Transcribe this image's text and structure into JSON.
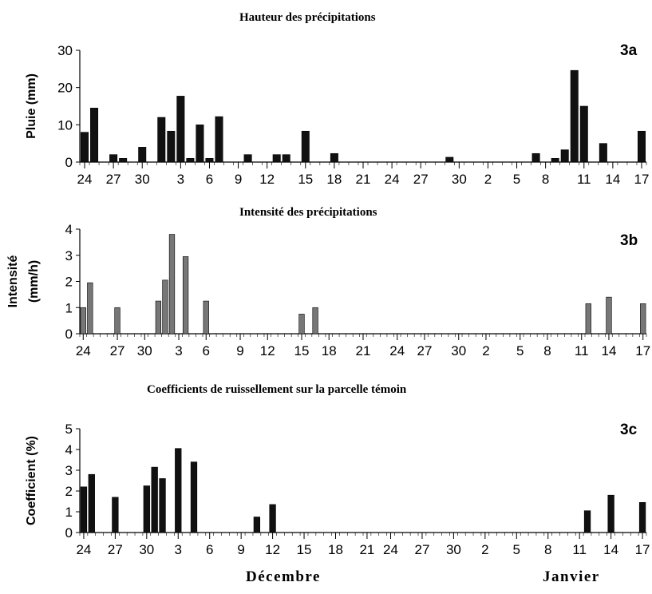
{
  "chart_data": [
    {
      "id": "3a",
      "type": "bar",
      "title": "Hauteur des précipitations",
      "tag": "3a",
      "ylabel": "Pluie (mm)",
      "ylabel_lines": [
        "Pluie (mm)"
      ],
      "ylim": [
        0,
        30
      ],
      "yticks": [
        0,
        10,
        20,
        30
      ],
      "bar_fill": "#111111",
      "values": [
        8,
        14.5,
        0,
        2,
        1,
        0,
        4,
        0,
        12,
        8.3,
        17.7,
        1,
        10,
        1,
        12.2,
        0,
        0,
        2,
        0,
        0,
        2,
        2,
        0,
        8.3,
        0,
        0,
        2.3,
        0,
        0,
        0,
        0,
        0,
        0,
        0,
        0,
        0,
        0,
        0,
        1.3,
        0,
        0,
        0,
        0,
        0,
        0,
        0,
        0,
        2.3,
        0,
        1,
        3.3,
        24.6,
        15,
        0,
        5,
        0,
        0,
        0,
        8.3
      ]
    },
    {
      "id": "3b",
      "type": "bar",
      "title": "Intensité des précipitations",
      "tag": "3b",
      "ylabel": "Intensité (mm/h)",
      "ylabel_lines": [
        "Intensité",
        "(mm/h)"
      ],
      "ylim": [
        0,
        4
      ],
      "yticks": [
        0,
        1,
        2,
        3,
        4
      ],
      "bar_fill": "#777777",
      "values": [
        1,
        1.95,
        0,
        0,
        0,
        1,
        0,
        0,
        0,
        0,
        0,
        1.25,
        2.05,
        3.8,
        0,
        2.95,
        0,
        0,
        1.25,
        0,
        0,
        0,
        0,
        0,
        0,
        0,
        0,
        0,
        0,
        0,
        0,
        0,
        0.75,
        0,
        1,
        0,
        0,
        0,
        0,
        0,
        0,
        0,
        0,
        0,
        0,
        0,
        0,
        0,
        0,
        0,
        0,
        0,
        0,
        0,
        0,
        0,
        0,
        0,
        0,
        0,
        0,
        0,
        0,
        0,
        0,
        0,
        0,
        0,
        0,
        0,
        0,
        0,
        0,
        0,
        1.15,
        0,
        0,
        1.4,
        0,
        0,
        0,
        0,
        1.15
      ]
    },
    {
      "id": "3c",
      "type": "bar",
      "title": "Coefficients de ruissellement sur la parcelle témoin",
      "tag": "3c",
      "ylabel": "Coefficient (%)",
      "ylabel_lines": [
        "Coefficient (%)"
      ],
      "ylim": [
        0,
        5
      ],
      "yticks": [
        0,
        1,
        2,
        3,
        4,
        5
      ],
      "bar_fill": "#111111",
      "values": [
        2.2,
        2.8,
        0,
        0,
        1.7,
        0,
        0,
        0,
        2.25,
        3.15,
        2.6,
        0,
        4.05,
        0,
        3.4,
        0,
        0,
        0,
        0,
        0,
        0,
        0,
        0.75,
        0,
        1.35,
        0,
        0,
        0,
        0,
        0,
        0,
        0,
        0,
        0,
        0,
        0,
        0,
        0,
        0,
        0,
        0,
        0,
        0,
        0,
        0,
        0,
        0,
        0,
        0,
        0,
        0,
        0,
        0,
        0,
        0,
        0,
        0,
        0,
        0,
        0,
        0,
        0,
        0,
        0,
        1.05,
        0,
        0,
        1.8,
        0,
        0,
        0,
        1.45
      ]
    }
  ],
  "xtick_labels": [
    "24",
    "27",
    "30",
    "3",
    "6",
    "9",
    "12",
    "15",
    "18",
    "21",
    "24",
    "27",
    "30",
    "2",
    "5",
    "8",
    "11",
    "14",
    "17"
  ],
  "months": {
    "december": "Décembre",
    "january": "Janvier"
  }
}
